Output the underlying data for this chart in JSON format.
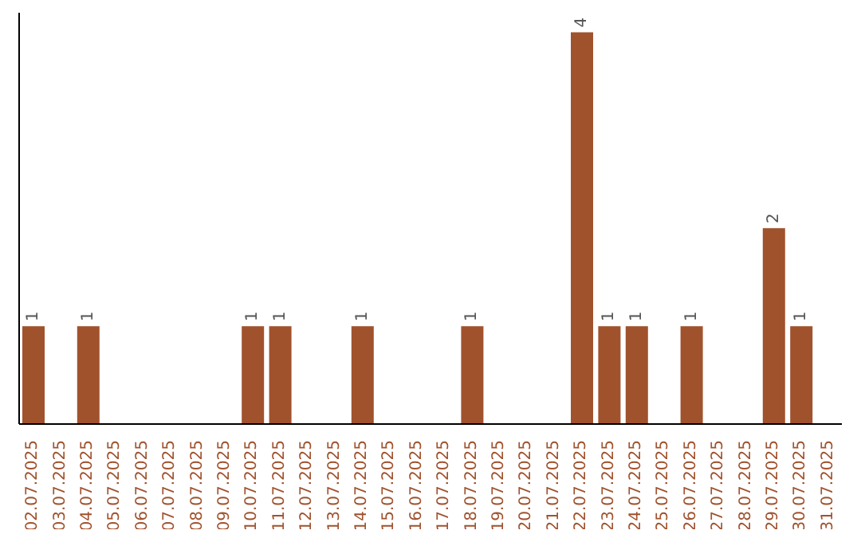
{
  "chart_data": {
    "type": "bar",
    "categories": [
      "02.07.2025",
      "03.07.2025",
      "04.07.2025",
      "05.07.2025",
      "06.07.2025",
      "07.07.2025",
      "08.07.2025",
      "09.07.2025",
      "10.07.2025",
      "11.07.2025",
      "12.07.2025",
      "13.07.2025",
      "14.07.2025",
      "15.07.2025",
      "16.07.2025",
      "17.07.2025",
      "18.07.2025",
      "19.07.2025",
      "20.07.2025",
      "21.07.2025",
      "22.07.2025",
      "23.07.2025",
      "24.07.2025",
      "25.07.2025",
      "26.07.2025",
      "27.07.2025",
      "28.07.2025",
      "29.07.2025",
      "30.07.2025",
      "31.07.2025"
    ],
    "values": [
      1,
      0,
      1,
      0,
      0,
      0,
      0,
      0,
      1,
      1,
      0,
      0,
      1,
      0,
      0,
      0,
      1,
      0,
      0,
      0,
      4,
      1,
      1,
      0,
      1,
      0,
      0,
      2,
      1,
      0
    ],
    "value_labels": [
      "1",
      null,
      "1",
      null,
      null,
      null,
      null,
      null,
      "1",
      "1",
      null,
      null,
      "1",
      null,
      null,
      null,
      "1",
      null,
      null,
      null,
      "4",
      "1",
      "1",
      null,
      "1",
      null,
      null,
      "2",
      "1",
      null
    ],
    "color": "#a0522d",
    "tick_labels": "x"
  }
}
